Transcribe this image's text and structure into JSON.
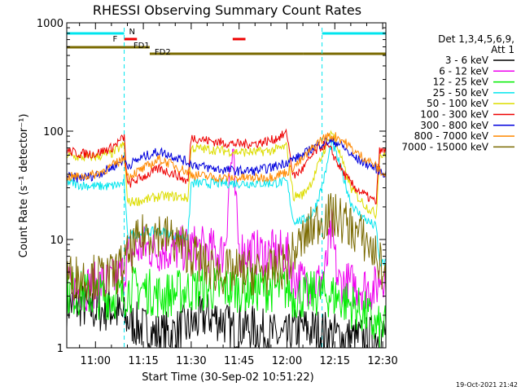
{
  "chart_data": {
    "type": "line",
    "title": "RHESSI Observing Summary Count Rates",
    "xlabel": "Start Time (30-Sep-02 10:51:22)",
    "ylabel": "Count Rate (s⁻¹ detector⁻¹)",
    "y_scale": "log",
    "ylim": [
      1,
      1000
    ],
    "xlim": [
      651,
      751
    ],
    "x_ticks": [
      660,
      675,
      690,
      705,
      720,
      735,
      750
    ],
    "x_tick_labels": [
      "11:00",
      "11:15",
      "11:30",
      "11:45",
      "12:00",
      "12:15",
      "12:30"
    ],
    "y_ticks": [
      1,
      10,
      100,
      1000
    ],
    "y_tick_labels": [
      "1",
      "10",
      "100",
      "1000"
    ],
    "legend_header": [
      "Det 1,3,4,5,6,9,",
      "Att 1"
    ],
    "legend_position": "right",
    "timestamp": "19-Oct-2021 21:42",
    "attenuator_flags": [
      {
        "label": "N",
        "segments": [
          [
            651,
            669
          ],
          [
            731,
            751
          ]
        ],
        "color": "#00e5ee"
      },
      {
        "label": "F",
        "segments": [
          [
            669,
            673
          ],
          [
            703,
            707
          ]
        ],
        "color": "#ee0000"
      },
      {
        "label": "FD1",
        "segments": [
          [
            651,
            677
          ]
        ],
        "color": "#7a6a00"
      },
      {
        "label": "FD2",
        "segments": [
          [
            677,
            725
          ],
          [
            725,
            751
          ]
        ],
        "color": "#7a6a00"
      }
    ],
    "series": [
      {
        "name": "3 - 6 keV",
        "color": "#000000",
        "x": [
          651,
          655,
          660,
          665,
          670,
          675,
          680,
          685,
          690,
          695,
          700,
          703,
          705,
          710,
          715,
          720,
          722,
          725,
          730,
          735,
          740,
          745,
          748,
          751
        ],
        "y": [
          2.5,
          2.5,
          2.2,
          2.3,
          1.8,
          1.5,
          1.3,
          1.4,
          1.6,
          2.0,
          1.8,
          1.4,
          1.6,
          1.5,
          1.3,
          1.2,
          1.4,
          1.5,
          1.4,
          1.3,
          1.2,
          1.2,
          1.3,
          1.3
        ]
      },
      {
        "name": "6 - 12 keV",
        "color": "#ee00ee",
        "x": [
          651,
          655,
          660,
          665,
          669,
          670,
          672,
          675,
          680,
          685,
          690,
          695,
          700,
          701,
          702,
          703,
          704,
          705,
          710,
          715,
          720,
          722,
          725,
          730,
          732,
          734,
          736,
          740,
          745,
          748,
          749,
          751
        ],
        "y": [
          3.5,
          3.5,
          3.8,
          4.0,
          5.0,
          7.0,
          8.0,
          8.5,
          8.0,
          8.0,
          8.5,
          8.0,
          7.5,
          12,
          40,
          60,
          20,
          8,
          7.5,
          7.5,
          7.5,
          4.5,
          4.0,
          4.0,
          5.0,
          12,
          4.0,
          3.8,
          3.6,
          3.5,
          4.5,
          5.0
        ]
      },
      {
        "name": "12 - 25 keV",
        "color": "#00ee00",
        "x": [
          651,
          655,
          660,
          665,
          669,
          670,
          675,
          680,
          685,
          690,
          695,
          700,
          705,
          710,
          715,
          720,
          722,
          725,
          730,
          735,
          740,
          745,
          748,
          751
        ],
        "y": [
          3.2,
          3.2,
          3.0,
          3.0,
          3.0,
          3.5,
          3.5,
          3.0,
          3.2,
          3.5,
          3.5,
          3.5,
          3.5,
          3.5,
          3.5,
          3.5,
          3.0,
          3.0,
          3.2,
          3.0,
          2.5,
          2.0,
          1.5,
          1.5
        ]
      },
      {
        "name": "25 - 50 keV",
        "color": "#00e5ee",
        "x": [
          651,
          655,
          660,
          665,
          669,
          670,
          675,
          680,
          685,
          689,
          690,
          695,
          700,
          705,
          710,
          715,
          720,
          722,
          725,
          728,
          730,
          732,
          734,
          736,
          738,
          740,
          742,
          745,
          748,
          749,
          751
        ],
        "y": [
          34,
          32,
          31,
          31,
          33,
          11,
          11.5,
          12,
          11,
          10.5,
          33,
          33,
          33,
          33,
          33,
          33,
          34,
          15,
          15,
          17,
          25,
          40,
          80,
          55,
          35,
          22,
          18,
          15,
          13,
          6,
          6
        ]
      },
      {
        "name": "50 - 100 keV",
        "color": "#dddd00",
        "x": [
          651,
          655,
          660,
          665,
          669,
          670,
          675,
          680,
          685,
          689,
          690,
          695,
          700,
          705,
          710,
          715,
          720,
          722,
          725,
          728,
          730,
          732,
          734,
          736,
          738,
          740,
          742,
          745,
          748,
          749,
          751
        ],
        "y": [
          60,
          57,
          58,
          62,
          75,
          22,
          23,
          25,
          25,
          24,
          70,
          68,
          66,
          64,
          64,
          66,
          72,
          25,
          26,
          35,
          50,
          70,
          100,
          70,
          45,
          30,
          25,
          20,
          17,
          60,
          60
        ]
      },
      {
        "name": "100 - 300 keV",
        "color": "#ee0000",
        "x": [
          651,
          655,
          660,
          665,
          669,
          670,
          675,
          680,
          685,
          689,
          690,
          695,
          700,
          705,
          710,
          715,
          720,
          722,
          725,
          728,
          730,
          732,
          734,
          736,
          738,
          740,
          742,
          745,
          748,
          749,
          751
        ],
        "y": [
          66,
          62,
          62,
          70,
          88,
          32,
          38,
          45,
          40,
          34,
          88,
          82,
          78,
          76,
          77,
          82,
          95,
          38,
          45,
          60,
          70,
          75,
          65,
          50,
          40,
          33,
          29,
          25,
          22,
          65,
          65
        ]
      },
      {
        "name": "300 - 800 keV",
        "color": "#0000dd",
        "x": [
          651,
          655,
          660,
          665,
          669,
          670,
          675,
          680,
          685,
          690,
          695,
          700,
          705,
          710,
          715,
          720,
          725,
          728,
          730,
          732,
          734,
          736,
          738,
          740,
          742,
          745,
          748,
          751
        ],
        "y": [
          38,
          37,
          39,
          46,
          55,
          48,
          58,
          65,
          58,
          50,
          46,
          44,
          43,
          43,
          46,
          52,
          60,
          70,
          75,
          80,
          80,
          78,
          70,
          60,
          55,
          50,
          45,
          40
        ]
      },
      {
        "name": "800 - 7000 keV",
        "color": "#ff8800",
        "x": [
          651,
          655,
          660,
          665,
          669,
          670,
          675,
          680,
          685,
          690,
          695,
          700,
          705,
          710,
          715,
          720,
          725,
          728,
          730,
          732,
          734,
          736,
          738,
          740,
          742,
          745,
          748,
          751
        ],
        "y": [
          38,
          38,
          40,
          47,
          57,
          38,
          45,
          55,
          48,
          40,
          38,
          37,
          37,
          37,
          38,
          42,
          55,
          70,
          80,
          88,
          90,
          88,
          80,
          70,
          62,
          55,
          47,
          38
        ]
      },
      {
        "name": "7000 - 15000 keV",
        "color": "#7a6a00",
        "x": [
          651,
          655,
          660,
          665,
          669,
          672,
          676,
          680,
          685,
          690,
          695,
          700,
          705,
          710,
          715,
          720,
          725,
          730,
          733,
          736,
          740,
          745,
          748,
          751
        ],
        "y": [
          4.5,
          4.5,
          4.5,
          4.5,
          6,
          8.5,
          11.5,
          11.5,
          9.5,
          7.5,
          5.5,
          5.0,
          5.0,
          5.0,
          5.0,
          6.0,
          10,
          15,
          16.5,
          16,
          13,
          9.5,
          7,
          4.5
        ]
      }
    ]
  }
}
